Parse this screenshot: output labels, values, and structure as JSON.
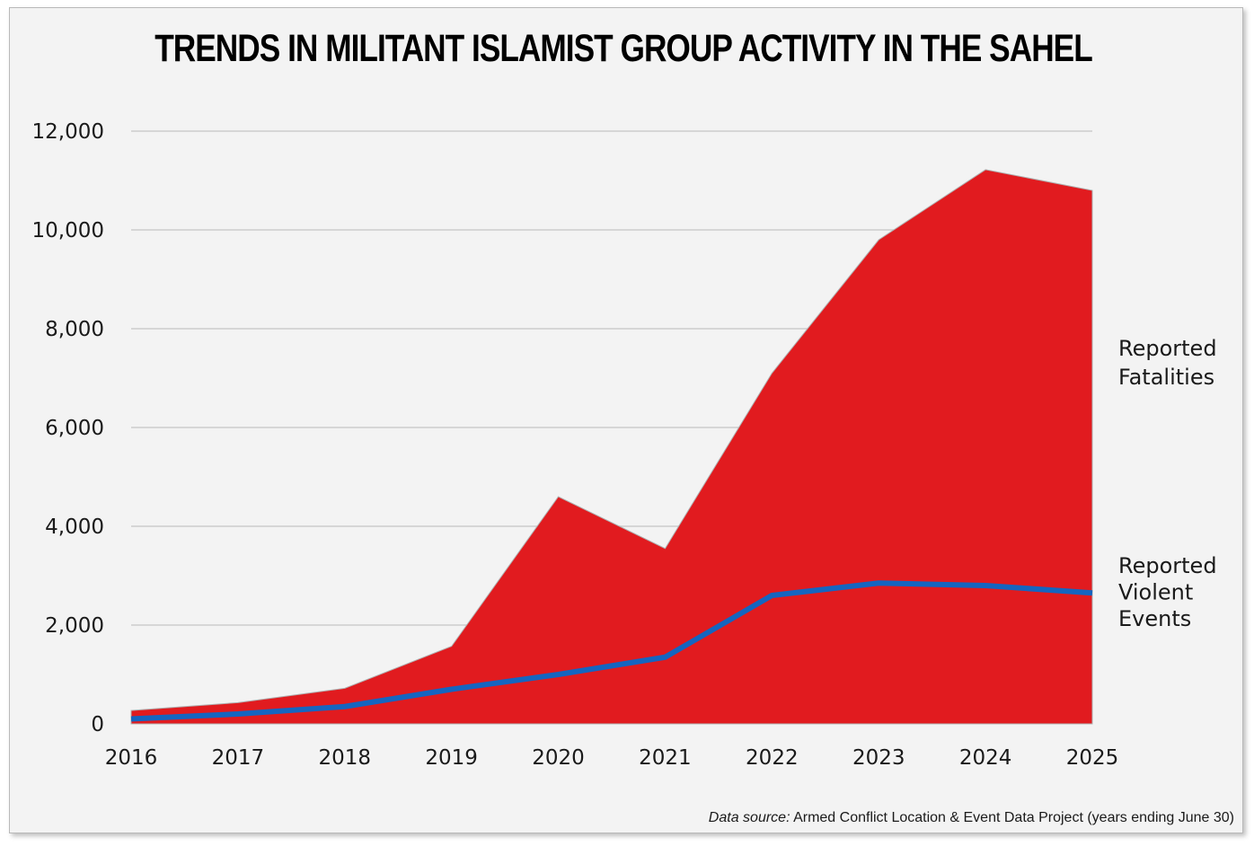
{
  "chart_data": {
    "type": "area",
    "title": "TRENDS IN MILITANT ISLAMIST GROUP ACTIVITY IN THE SAHEL",
    "x": [
      "2016",
      "2017",
      "2018",
      "2019",
      "2020",
      "2021",
      "2022",
      "2023",
      "2024",
      "2025"
    ],
    "ylim": [
      0,
      12000
    ],
    "yticks": [
      "12,000",
      "10,000",
      "8,000",
      "6,000",
      "4,000",
      "2,000",
      "0"
    ],
    "grid": true,
    "series": [
      {
        "name": "Reported Fatalities",
        "label_lines": [
          "Reported",
          "Fatalities"
        ],
        "style": "area",
        "color": "#e11b1f",
        "values": [
          270,
          430,
          720,
          1570,
          4600,
          3550,
          7100,
          9800,
          11220,
          10800
        ]
      },
      {
        "name": "Reported Violent Events",
        "label_lines": [
          "Reported",
          "Violent",
          "Events"
        ],
        "style": "line",
        "color": "#1565c0",
        "values": [
          100,
          200,
          350,
          700,
          1000,
          1350,
          2600,
          2850,
          2800,
          2650
        ]
      }
    ]
  },
  "source": {
    "label": "Data source:",
    "text": " Armed Conflict Location & Event Data Project (years ending June 30)"
  },
  "colors": {
    "background": "#f3f3f3",
    "grid": "#cccccc",
    "fatalities": "#e11b1f",
    "events": "#1565c0"
  }
}
